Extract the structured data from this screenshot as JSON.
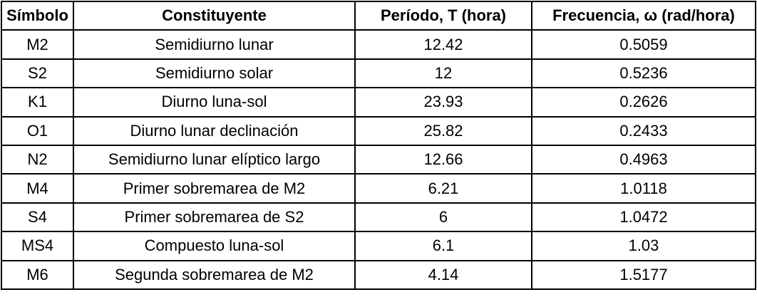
{
  "table": {
    "headers": {
      "symbol": "Símbolo",
      "constituent": "Constituyente",
      "period": "Período, T (hora)",
      "frequency": "Frecuencia, ω (rad/hora)"
    },
    "rows": [
      {
        "symbol": "M2",
        "constituent": "Semidiurno lunar",
        "period": "12.42",
        "frequency": "0.5059"
      },
      {
        "symbol": "S2",
        "constituent": "Semidiurno solar",
        "period": "12",
        "frequency": "0.5236"
      },
      {
        "symbol": "K1",
        "constituent": "Diurno luna-sol",
        "period": "23.93",
        "frequency": "0.2626"
      },
      {
        "symbol": "O1",
        "constituent": "Diurno lunar declinación",
        "period": "25.82",
        "frequency": "0.2433"
      },
      {
        "symbol": "N2",
        "constituent": "Semidiurno lunar elíptico largo",
        "period": "12.66",
        "frequency": "0.4963"
      },
      {
        "symbol": "M4",
        "constituent": "Primer sobremarea de M2",
        "period": "6.21",
        "frequency": "1.0118"
      },
      {
        "symbol": "S4",
        "constituent": "Primer sobremarea de S2",
        "period": "6",
        "frequency": "1.0472"
      },
      {
        "symbol": "MS4",
        "constituent": "Compuesto luna-sol",
        "period": "6.1",
        "frequency": "1.03"
      },
      {
        "symbol": "M6",
        "constituent": "Segunda sobremarea de M2",
        "period": "4.14",
        "frequency": "1.5177"
      }
    ]
  }
}
